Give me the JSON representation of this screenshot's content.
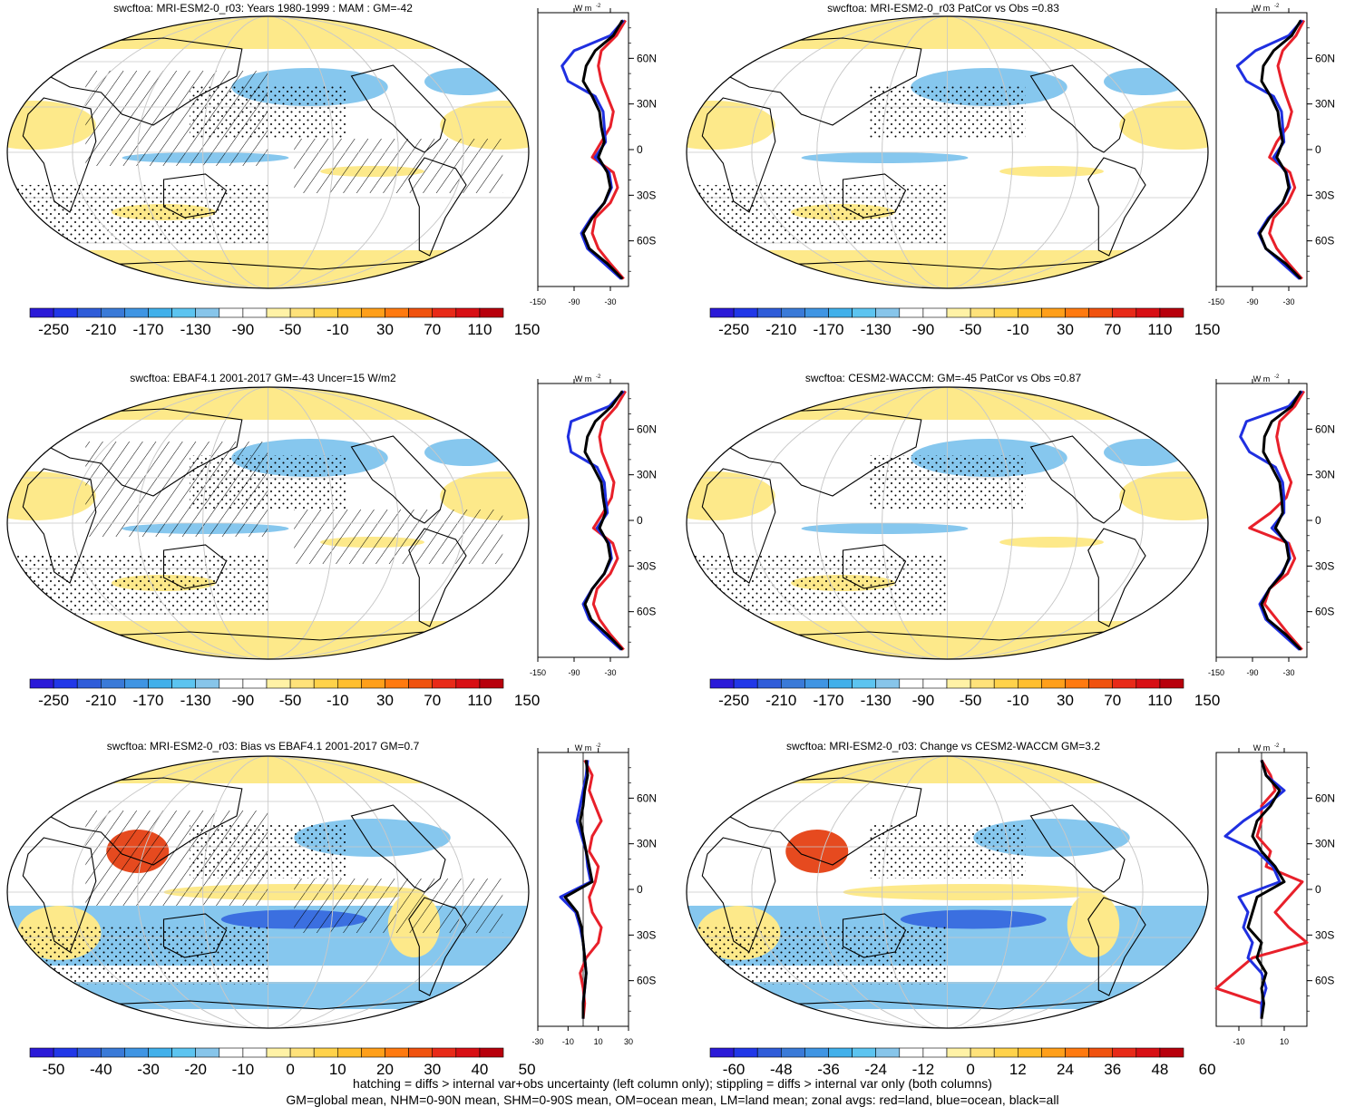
{
  "colors": {
    "land": "#e8202a",
    "ocean": "#1f2fe0",
    "all": "#000000",
    "scale_main": [
      "#2b1ad8",
      "#2137e8",
      "#2f5cd9",
      "#3a7ad8",
      "#3f95e3",
      "#41b0ea",
      "#5cc4f0",
      "#87c5ea",
      "#ffffff",
      "#ffffff",
      "#fff2a6",
      "#ffe27a",
      "#ffd24a",
      "#ffbe2e",
      "#ff9f1a",
      "#ff7a10",
      "#f0520e",
      "#e82a18",
      "#d80f14",
      "#b8000c"
    ],
    "map_pos": "#fde98a",
    "map_neg": "#86c7ee",
    "map_strong_pos": "#e64a1f",
    "map_strong_neg": "#3b6fe0"
  },
  "panels": [
    {
      "title": "swcftoa: MRI-ESM2-0_r03: Years 1980-1999 : MAM : GM=-42",
      "colorbar_ticks": [
        "-250",
        "-210",
        "-170",
        "-130",
        "-90",
        "-50",
        "-10",
        "30",
        "70",
        "110",
        "150"
      ],
      "zonal_xticks": [
        "-150",
        "-90",
        "-30"
      ],
      "zonal_unit": "W m",
      "zonal_xmin": -150,
      "zonal_xmax": 0,
      "hatched": true
    },
    {
      "title": "swcftoa: MRI-ESM2-0_r03 PatCor vs Obs =0.83",
      "colorbar_ticks": [
        "-250",
        "-210",
        "-170",
        "-130",
        "-90",
        "-50",
        "-10",
        "30",
        "70",
        "110",
        "150"
      ],
      "zonal_xticks": [
        "-150",
        "-90",
        "-30"
      ],
      "zonal_unit": "W m",
      "zonal_xmin": -150,
      "zonal_xmax": 0,
      "hatched": false
    },
    {
      "title": "swcftoa: EBAF4.1 2001-2017 GM=-43 Uncer=15 W/m2",
      "colorbar_ticks": [
        "-250",
        "-210",
        "-170",
        "-130",
        "-90",
        "-50",
        "-10",
        "30",
        "70",
        "110",
        "150"
      ],
      "zonal_xticks": [
        "-150",
        "-90",
        "-30"
      ],
      "zonal_unit": "W m",
      "zonal_xmin": -150,
      "zonal_xmax": 0,
      "hatched": true
    },
    {
      "title": "swcftoa: CESM2-WACCM: GM=-45 PatCor vs Obs =0.87",
      "colorbar_ticks": [
        "-250",
        "-210",
        "-170",
        "-130",
        "-90",
        "-50",
        "-10",
        "30",
        "70",
        "110",
        "150"
      ],
      "zonal_xticks": [
        "-150",
        "-90",
        "-30"
      ],
      "zonal_unit": "W m",
      "zonal_xmin": -150,
      "zonal_xmax": 0,
      "hatched": false
    },
    {
      "title": "swcftoa: MRI-ESM2-0_r03: Bias vs EBAF4.1 2001-2017 GM=0.7",
      "colorbar_ticks": [
        "-50",
        "-40",
        "-30",
        "-20",
        "-10",
        "0",
        "10",
        "20",
        "30",
        "40",
        "50"
      ],
      "zonal_xticks": [
        "-30",
        "-10",
        "10",
        "30"
      ],
      "zonal_unit": "W m",
      "zonal_xmin": -30,
      "zonal_xmax": 30,
      "hatched": true
    },
    {
      "title": "swcftoa: MRI-ESM2-0_r03: Change vs CESM2-WACCM GM=3.2",
      "colorbar_ticks": [
        "-60",
        "-48",
        "-36",
        "-24",
        "-12",
        "0",
        "12",
        "24",
        "36",
        "48",
        "60"
      ],
      "zonal_xticks": [
        "-10",
        "10"
      ],
      "zonal_unit": "W m",
      "zonal_xmin": -20,
      "zonal_xmax": 20,
      "hatched": false
    }
  ],
  "lat_labels": [
    "60N",
    "30N",
    "0",
    "30S",
    "60S"
  ],
  "chart_data": {
    "type": "heatmap",
    "description_type": "multi-panel zonal-mean line plots with map panels",
    "lat": [
      85,
      75,
      65,
      55,
      45,
      35,
      25,
      15,
      5,
      -5,
      -15,
      -25,
      -35,
      -45,
      -55,
      -65,
      -75,
      -85
    ],
    "series": [
      {
        "panel": 0,
        "all": [
          -10,
          -25,
          -55,
          -70,
          -75,
          -60,
          -48,
          -45,
          -40,
          -50,
          -35,
          -30,
          -40,
          -60,
          -75,
          -65,
          -35,
          -10
        ],
        "ocean": [
          -8,
          -30,
          -90,
          -110,
          -100,
          -55,
          -42,
          -40,
          -38,
          -55,
          -32,
          -28,
          -40,
          -62,
          -78,
          -68,
          -40,
          -12
        ],
        "land": [
          -5,
          -20,
          -45,
          -50,
          -45,
          -35,
          -25,
          -30,
          -45,
          -60,
          -25,
          -18,
          -30,
          -55,
          -60,
          -50,
          -30,
          -8
        ]
      },
      {
        "panel": 1,
        "all": [
          -10,
          -25,
          -55,
          -72,
          -75,
          -60,
          -48,
          -45,
          -40,
          -50,
          -35,
          -30,
          -40,
          -62,
          -78,
          -68,
          -35,
          -10
        ],
        "ocean": [
          -8,
          -30,
          -85,
          -115,
          -100,
          -55,
          -42,
          -40,
          -38,
          -55,
          -34,
          -28,
          -40,
          -64,
          -80,
          -68,
          -40,
          -12
        ],
        "land": [
          -5,
          -18,
          -40,
          -48,
          -42,
          -34,
          -25,
          -32,
          -50,
          -62,
          -28,
          -20,
          -32,
          -55,
          -62,
          -50,
          -30,
          -8
        ]
      },
      {
        "panel": 2,
        "all": [
          -10,
          -28,
          -55,
          -68,
          -72,
          -58,
          -45,
          -42,
          -38,
          -48,
          -34,
          -30,
          -40,
          -60,
          -72,
          -62,
          -35,
          -10
        ],
        "ocean": [
          -8,
          -32,
          -95,
          -100,
          -95,
          -52,
          -40,
          -38,
          -35,
          -52,
          -32,
          -28,
          -40,
          -60,
          -75,
          -65,
          -40,
          -12
        ],
        "land": [
          -5,
          -20,
          -42,
          -48,
          -44,
          -34,
          -24,
          -28,
          -42,
          -58,
          -26,
          -18,
          -30,
          -52,
          -58,
          -48,
          -30,
          -8
        ]
      },
      {
        "panel": 3,
        "all": [
          -10,
          -25,
          -58,
          -70,
          -72,
          -58,
          -45,
          -42,
          -40,
          -52,
          -34,
          -30,
          -40,
          -62,
          -75,
          -65,
          -35,
          -10
        ],
        "ocean": [
          -8,
          -30,
          -100,
          -110,
          -95,
          -52,
          -40,
          -38,
          -38,
          -58,
          -32,
          -28,
          -42,
          -62,
          -78,
          -68,
          -40,
          -12
        ],
        "land": [
          -5,
          -20,
          -45,
          -50,
          -45,
          -36,
          -26,
          -34,
          -60,
          -95,
          -30,
          -20,
          -32,
          -62,
          -70,
          -50,
          -30,
          -8
        ]
      },
      {
        "panel": 4,
        "all": [
          2,
          3,
          1,
          0,
          -2,
          0,
          2,
          4,
          6,
          -12,
          -4,
          -1,
          0,
          1,
          2,
          1,
          0,
          0
        ],
        "ocean": [
          3,
          2,
          0,
          -2,
          -4,
          -1,
          2,
          3,
          5,
          -15,
          -5,
          -2,
          0,
          1,
          2,
          1,
          0,
          0
        ],
        "land": [
          1,
          6,
          4,
          8,
          12,
          6,
          4,
          10,
          8,
          4,
          6,
          12,
          10,
          2,
          -2,
          0,
          1,
          0
        ]
      },
      {
        "panel": 5,
        "all": [
          0,
          2,
          8,
          4,
          -2,
          -4,
          0,
          6,
          10,
          -2,
          -4,
          -6,
          0,
          -2,
          2,
          0,
          1,
          0
        ],
        "ocean": [
          0,
          2,
          10,
          2,
          -8,
          -16,
          -2,
          5,
          8,
          -10,
          -6,
          -8,
          -4,
          -6,
          0,
          2,
          0,
          0
        ],
        "land": [
          0,
          4,
          6,
          0,
          0,
          -2,
          4,
          2,
          18,
          12,
          6,
          12,
          20,
          -4,
          -12,
          -22,
          0,
          0
        ]
      }
    ]
  },
  "footer": {
    "line1": "hatching = diffs > internal var+obs uncertainty (left column only); stippling = diffs > internal var only (both columns)",
    "line2": "GM=global mean, NHM=0-90N mean, SHM=0-90S mean, OM=ocean mean, LM=land mean; zonal avgs: red=land, blue=ocean, black=all"
  }
}
